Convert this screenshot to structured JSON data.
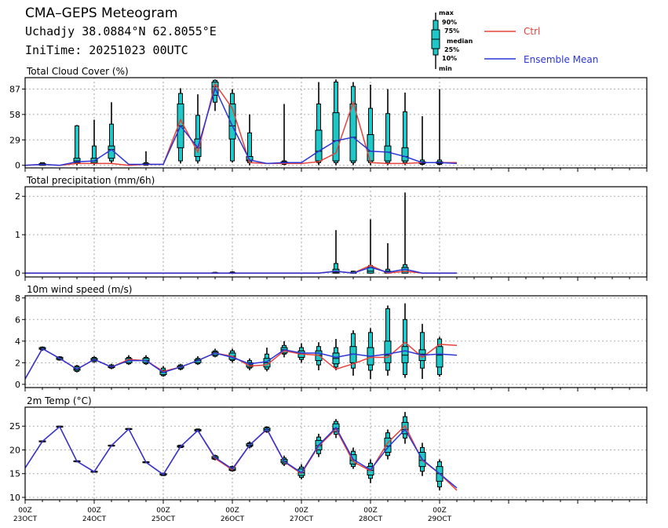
{
  "header": {
    "title": "CMA–GEPS Meteogram",
    "location": "Uchadjy 38.0884°N 62.8055°E",
    "init": "IniTime: 20251023 00UTC"
  },
  "legend": {
    "box_labels": [
      "max",
      "90%",
      "75%",
      "median",
      "25%",
      "10%",
      "min"
    ],
    "ctrl_label": "Ctrl",
    "mean_label": "Ensemble Mean",
    "ctrl_color": "#e8403a",
    "mean_color": "#2b35d6",
    "box_color": "#1ec8c8"
  },
  "x_axis": {
    "steps": 36,
    "hours_per_step": 6,
    "ticks": [
      {
        "step": 0,
        "top": "00Z",
        "bottom": "23OCT"
      },
      {
        "step": 4,
        "top": "00Z",
        "bottom": "24OCT"
      },
      {
        "step": 8,
        "top": "00Z",
        "bottom": "25OCT"
      },
      {
        "step": 12,
        "top": "00Z",
        "bottom": "26OCT"
      },
      {
        "step": 16,
        "top": "00Z",
        "bottom": "27OCT"
      },
      {
        "step": 20,
        "top": "00Z",
        "bottom": "28OCT"
      },
      {
        "step": 24,
        "top": "00Z",
        "bottom": "29OCT"
      }
    ]
  },
  "chart_data": [
    {
      "type": "box",
      "title": "Total Cloud Cover (%)",
      "ylim": [
        -3,
        100
      ],
      "yticks": [
        0,
        29,
        58,
        87
      ],
      "ctrl": [
        0,
        1,
        0,
        2,
        2,
        2,
        0,
        1,
        1,
        52,
        15,
        93,
        65,
        3,
        2,
        2,
        2,
        4,
        14,
        72,
        3,
        2,
        2,
        3,
        3,
        3
      ],
      "mean": [
        0,
        1,
        0,
        4,
        5,
        18,
        1,
        1,
        1,
        45,
        20,
        88,
        45,
        6,
        2,
        3,
        3,
        16,
        28,
        32,
        16,
        15,
        10,
        3,
        3,
        2
      ],
      "boxes": {
        "1": {
          "min": 0,
          "p10": 0,
          "p25": 0,
          "median": 1,
          "p75": 2,
          "p90": 3,
          "max": 3
        },
        "3": {
          "min": 0,
          "p10": 2,
          "p25": 3,
          "median": 5,
          "p75": 8,
          "p90": 45,
          "max": 46
        },
        "4": {
          "min": 0,
          "p10": 2,
          "p25": 3,
          "median": 5,
          "p75": 8,
          "p90": 22,
          "max": 52
        },
        "5": {
          "min": 2,
          "p10": 5,
          "p25": 8,
          "median": 18,
          "p75": 22,
          "p90": 47,
          "max": 72
        },
        "7": {
          "min": 0,
          "p10": 0,
          "p25": 1,
          "median": 1,
          "p75": 2,
          "p90": 3,
          "max": 16
        },
        "9": {
          "min": 2,
          "p10": 5,
          "p25": 20,
          "median": 45,
          "p75": 70,
          "p90": 82,
          "max": 88
        },
        "10": {
          "min": 2,
          "p10": 5,
          "p25": 10,
          "median": 20,
          "p75": 30,
          "p90": 57,
          "max": 81
        },
        "11": {
          "min": 62,
          "p10": 72,
          "p25": 80,
          "median": 90,
          "p75": 95,
          "p90": 97,
          "max": 98
        },
        "12": {
          "min": 3,
          "p10": 5,
          "p25": 30,
          "median": 45,
          "p75": 70,
          "p90": 82,
          "max": 87
        },
        "13": {
          "min": 0,
          "p10": 3,
          "p25": 5,
          "median": 6,
          "p75": 10,
          "p90": 37,
          "max": 58
        },
        "15": {
          "min": 0,
          "p10": 1,
          "p25": 2,
          "median": 3,
          "p75": 4,
          "p90": 5,
          "max": 70
        },
        "17": {
          "min": 0,
          "p10": 3,
          "p25": 5,
          "median": 16,
          "p75": 40,
          "p90": 70,
          "max": 95
        },
        "18": {
          "min": 0,
          "p10": 3,
          "p25": 5,
          "median": 28,
          "p75": 60,
          "p90": 95,
          "max": 98
        },
        "19": {
          "min": 0,
          "p10": 3,
          "p25": 5,
          "median": 32,
          "p75": 70,
          "p90": 90,
          "max": 95
        },
        "20": {
          "min": 0,
          "p10": 3,
          "p25": 5,
          "median": 16,
          "p75": 35,
          "p90": 65,
          "max": 92
        },
        "21": {
          "min": 0,
          "p10": 3,
          "p25": 5,
          "median": 15,
          "p75": 22,
          "p90": 59,
          "max": 87
        },
        "22": {
          "min": 0,
          "p10": 3,
          "p25": 5,
          "median": 10,
          "p75": 20,
          "p90": 61,
          "max": 83
        },
        "23": {
          "min": 0,
          "p10": 1,
          "p25": 2,
          "median": 3,
          "p75": 4,
          "p90": 6,
          "max": 56
        },
        "24": {
          "min": 0,
          "p10": 1,
          "p25": 2,
          "median": 3,
          "p75": 4,
          "p90": 6,
          "max": 87
        }
      }
    },
    {
      "type": "box",
      "title": "Total precipitation (mm/6h)",
      "ylim": [
        -0.1,
        2.25
      ],
      "yticks": [
        0,
        1,
        2
      ],
      "ctrl": [
        0,
        0,
        0,
        0,
        0,
        0,
        0,
        0,
        0,
        0,
        0,
        0,
        0,
        0,
        0,
        0,
        0,
        0,
        0.05,
        0,
        0.2,
        0,
        0.05,
        0,
        0,
        0
      ],
      "mean": [
        0,
        0,
        0,
        0,
        0,
        0,
        0,
        0,
        0,
        0,
        0,
        0,
        0,
        0,
        0,
        0,
        0,
        0,
        0.05,
        0,
        0.15,
        0.02,
        0.1,
        0,
        0,
        0
      ],
      "boxes": {
        "11": {
          "min": 0,
          "p10": 0,
          "p25": 0,
          "median": 0,
          "p75": 0.01,
          "p90": 0.02,
          "max": 0.03
        },
        "12": {
          "min": 0,
          "p10": 0,
          "p25": 0,
          "median": 0,
          "p75": 0.01,
          "p90": 0.03,
          "max": 0.05
        },
        "18": {
          "min": 0,
          "p10": 0,
          "p25": 0,
          "median": 0.02,
          "p75": 0.1,
          "p90": 0.25,
          "max": 1.12
        },
        "19": {
          "min": 0,
          "p10": 0,
          "p25": 0,
          "median": 0,
          "p75": 0.02,
          "p90": 0.05,
          "max": 0.06
        },
        "20": {
          "min": 0,
          "p10": 0,
          "p25": 0,
          "median": 0.05,
          "p75": 0.15,
          "p90": 0.2,
          "max": 1.4
        },
        "21": {
          "min": 0,
          "p10": 0,
          "p25": 0,
          "median": 0.01,
          "p75": 0.05,
          "p90": 0.1,
          "max": 0.78
        },
        "22": {
          "min": 0,
          "p10": 0,
          "p25": 0,
          "median": 0.05,
          "p75": 0.15,
          "p90": 0.22,
          "max": 2.1
        }
      }
    },
    {
      "type": "box",
      "title": "10m wind speed (m/s)",
      "ylim": [
        -0.3,
        8.2
      ],
      "yticks": [
        0,
        2,
        4,
        6,
        8
      ],
      "ctrl": [
        0.5,
        3.3,
        2.4,
        1.4,
        2.3,
        1.6,
        2.3,
        2.2,
        1.2,
        1.6,
        2.2,
        2.9,
        2.6,
        1.7,
        1.8,
        3.1,
        2.8,
        2.7,
        1.4,
        1.9,
        2.5,
        2.5,
        3.9,
        2.5,
        3.7,
        3.6
      ],
      "mean": [
        0.5,
        3.3,
        2.4,
        1.4,
        2.3,
        1.6,
        2.2,
        2.2,
        1.1,
        1.6,
        2.2,
        2.9,
        2.5,
        1.9,
        2.1,
        3.2,
        2.9,
        2.9,
        2.5,
        2.8,
        2.6,
        2.8,
        3.1,
        2.7,
        2.8,
        2.7
      ],
      "boxes": {
        "1": {
          "min": 3.1,
          "p10": 3.2,
          "p25": 3.25,
          "median": 3.3,
          "p75": 3.4,
          "p90": 3.45,
          "max": 3.5
        },
        "2": {
          "min": 2.2,
          "p10": 2.25,
          "p25": 2.3,
          "median": 2.4,
          "p75": 2.5,
          "p90": 2.55,
          "max": 2.6
        },
        "3": {
          "min": 1.1,
          "p10": 1.2,
          "p25": 1.3,
          "median": 1.4,
          "p75": 1.6,
          "p90": 1.7,
          "max": 1.8
        },
        "4": {
          "min": 2.0,
          "p10": 2.1,
          "p25": 2.2,
          "median": 2.3,
          "p75": 2.4,
          "p90": 2.5,
          "max": 2.6
        },
        "5": {
          "min": 1.4,
          "p10": 1.5,
          "p25": 1.55,
          "median": 1.6,
          "p75": 1.7,
          "p90": 1.8,
          "max": 1.9
        },
        "6": {
          "min": 1.8,
          "p10": 1.9,
          "p25": 2.0,
          "median": 2.2,
          "p75": 2.4,
          "p90": 2.5,
          "max": 2.7
        },
        "7": {
          "min": 1.8,
          "p10": 1.9,
          "p25": 2.0,
          "median": 2.2,
          "p75": 2.4,
          "p90": 2.5,
          "max": 2.7
        },
        "8": {
          "min": 0.7,
          "p10": 0.8,
          "p25": 0.9,
          "median": 1.1,
          "p75": 1.3,
          "p90": 1.5,
          "max": 1.7
        },
        "9": {
          "min": 1.3,
          "p10": 1.4,
          "p25": 1.5,
          "median": 1.6,
          "p75": 1.7,
          "p90": 1.8,
          "max": 1.9
        },
        "10": {
          "min": 1.8,
          "p10": 1.9,
          "p25": 2.0,
          "median": 2.2,
          "p75": 2.3,
          "p90": 2.4,
          "max": 2.6
        },
        "11": {
          "min": 2.5,
          "p10": 2.6,
          "p25": 2.7,
          "median": 2.9,
          "p75": 3.0,
          "p90": 3.1,
          "max": 3.3
        },
        "12": {
          "min": 2.0,
          "p10": 2.2,
          "p25": 2.3,
          "median": 2.6,
          "p75": 2.9,
          "p90": 3.1,
          "max": 3.3
        },
        "13": {
          "min": 1.3,
          "p10": 1.5,
          "p25": 1.6,
          "median": 1.8,
          "p75": 2.0,
          "p90": 2.2,
          "max": 2.4
        },
        "14": {
          "min": 1.2,
          "p10": 1.4,
          "p25": 1.6,
          "median": 2.0,
          "p75": 2.4,
          "p90": 2.8,
          "max": 3.4
        },
        "15": {
          "min": 2.5,
          "p10": 2.8,
          "p25": 2.9,
          "median": 3.2,
          "p75": 3.4,
          "p90": 3.6,
          "max": 4.0
        },
        "16": {
          "min": 2.0,
          "p10": 2.3,
          "p25": 2.5,
          "median": 2.8,
          "p75": 3.1,
          "p90": 3.4,
          "max": 3.8
        },
        "17": {
          "min": 1.3,
          "p10": 1.8,
          "p25": 2.2,
          "median": 2.7,
          "p75": 3.1,
          "p90": 3.5,
          "max": 3.9
        },
        "18": {
          "min": 1.3,
          "p10": 1.6,
          "p25": 1.9,
          "median": 2.4,
          "p75": 2.9,
          "p90": 3.4,
          "max": 4.2
        },
        "19": {
          "min": 0.8,
          "p10": 1.5,
          "p25": 2.0,
          "median": 2.8,
          "p75": 3.5,
          "p90": 4.7,
          "max": 5.0
        },
        "20": {
          "min": 0.5,
          "p10": 1.3,
          "p25": 1.8,
          "median": 2.6,
          "p75": 3.4,
          "p90": 4.8,
          "max": 5.2
        },
        "21": {
          "min": 0.8,
          "p10": 1.3,
          "p25": 2.0,
          "median": 2.7,
          "p75": 4.0,
          "p90": 7.0,
          "max": 7.3
        },
        "22": {
          "min": 0.6,
          "p10": 0.9,
          "p25": 2.0,
          "median": 2.7,
          "p75": 3.5,
          "p90": 6.0,
          "max": 7.5
        },
        "23": {
          "min": 0.5,
          "p10": 1.5,
          "p25": 2.2,
          "median": 2.8,
          "p75": 3.2,
          "p90": 4.8,
          "max": 5.6
        },
        "24": {
          "min": 0.7,
          "p10": 0.9,
          "p25": 1.6,
          "median": 2.7,
          "p75": 3.5,
          "p90": 4.2,
          "max": 4.4
        }
      }
    },
    {
      "type": "box",
      "title": "2m Temp (°C)",
      "ylim": [
        9.5,
        29
      ],
      "yticks": [
        10,
        15,
        20,
        25
      ],
      "ctrl": [
        16.2,
        21.8,
        24.9,
        17.6,
        15.4,
        20.9,
        24.4,
        17.4,
        14.8,
        20.7,
        24.1,
        18.2,
        15.8,
        21.0,
        24.3,
        17.5,
        15.0,
        20.8,
        24.4,
        17.5,
        15.6,
        21.5,
        25.1,
        17.8,
        15.0,
        11.5
      ],
      "mean": [
        16.2,
        21.8,
        24.9,
        17.6,
        15.4,
        20.9,
        24.4,
        17.4,
        14.8,
        20.7,
        24.1,
        18.4,
        16.0,
        21.0,
        24.4,
        17.6,
        15.2,
        21.0,
        24.7,
        18.0,
        15.8,
        20.5,
        24.3,
        18.0,
        15.0,
        12.0
      ],
      "boxes": {
        "1": {
          "min": 21.6,
          "p10": 21.7,
          "p25": 21.7,
          "median": 21.8,
          "p75": 21.9,
          "p90": 21.9,
          "max": 22.0
        },
        "2": {
          "min": 24.7,
          "p10": 24.8,
          "p25": 24.8,
          "median": 24.9,
          "p75": 25.0,
          "p90": 25.0,
          "max": 25.1
        },
        "3": {
          "min": 17.4,
          "p10": 17.5,
          "p25": 17.5,
          "median": 17.6,
          "p75": 17.7,
          "p90": 17.7,
          "max": 17.8
        },
        "4": {
          "min": 15.2,
          "p10": 15.3,
          "p25": 15.3,
          "median": 15.4,
          "p75": 15.5,
          "p90": 15.5,
          "max": 15.6
        },
        "5": {
          "min": 20.7,
          "p10": 20.8,
          "p25": 20.8,
          "median": 20.9,
          "p75": 21.0,
          "p90": 21.0,
          "max": 21.1
        },
        "6": {
          "min": 24.2,
          "p10": 24.3,
          "p25": 24.3,
          "median": 24.4,
          "p75": 24.5,
          "p90": 24.5,
          "max": 24.6
        },
        "7": {
          "min": 17.2,
          "p10": 17.3,
          "p25": 17.3,
          "median": 17.4,
          "p75": 17.5,
          "p90": 17.5,
          "max": 17.6
        },
        "8": {
          "min": 14.5,
          "p10": 14.6,
          "p25": 14.7,
          "median": 14.8,
          "p75": 15.0,
          "p90": 15.1,
          "max": 15.2
        },
        "9": {
          "min": 20.4,
          "p10": 20.5,
          "p25": 20.6,
          "median": 20.7,
          "p75": 20.9,
          "p90": 21.0,
          "max": 21.1
        },
        "10": {
          "min": 23.8,
          "p10": 23.9,
          "p25": 24.0,
          "median": 24.1,
          "p75": 24.3,
          "p90": 24.4,
          "max": 24.5
        },
        "11": {
          "min": 17.8,
          "p10": 18.0,
          "p25": 18.1,
          "median": 18.3,
          "p75": 18.6,
          "p90": 18.8,
          "max": 19.0
        },
        "12": {
          "min": 15.4,
          "p10": 15.6,
          "p25": 15.7,
          "median": 15.9,
          "p75": 16.3,
          "p90": 16.5,
          "max": 16.7
        },
        "13": {
          "min": 20.3,
          "p10": 20.6,
          "p25": 20.8,
          "median": 21.0,
          "p75": 21.3,
          "p90": 21.5,
          "max": 21.8
        },
        "14": {
          "min": 23.6,
          "p10": 23.8,
          "p25": 24.0,
          "median": 24.3,
          "p75": 24.6,
          "p90": 24.8,
          "max": 25.0
        },
        "15": {
          "min": 16.6,
          "p10": 17.0,
          "p25": 17.3,
          "median": 17.6,
          "p75": 18.0,
          "p90": 18.3,
          "max": 18.8
        },
        "16": {
          "min": 13.8,
          "p10": 14.2,
          "p25": 14.6,
          "median": 15.2,
          "p75": 16.0,
          "p90": 16.4,
          "max": 17.0
        },
        "17": {
          "min": 18.5,
          "p10": 19.2,
          "p25": 20.0,
          "median": 20.9,
          "p75": 22.0,
          "p90": 22.7,
          "max": 23.4
        },
        "18": {
          "min": 22.5,
          "p10": 23.3,
          "p25": 23.8,
          "median": 24.5,
          "p75": 25.5,
          "p90": 26.0,
          "max": 26.5
        },
        "19": {
          "min": 16.0,
          "p10": 16.5,
          "p25": 17.0,
          "median": 17.8,
          "p75": 19.0,
          "p90": 19.7,
          "max": 20.5
        },
        "20": {
          "min": 13.0,
          "p10": 14.0,
          "p25": 14.7,
          "median": 15.7,
          "p75": 16.5,
          "p90": 17.2,
          "max": 18.0
        },
        "21": {
          "min": 18.0,
          "p10": 18.8,
          "p25": 19.5,
          "median": 20.8,
          "p75": 22.5,
          "p90": 23.6,
          "max": 24.3
        },
        "22": {
          "min": 21.3,
          "p10": 22.5,
          "p25": 23.4,
          "median": 24.3,
          "p75": 25.8,
          "p90": 27.0,
          "max": 28.0
        },
        "23": {
          "min": 14.5,
          "p10": 15.5,
          "p25": 16.5,
          "median": 17.8,
          "p75": 19.5,
          "p90": 20.5,
          "max": 21.5
        },
        "24": {
          "min": 11.5,
          "p10": 12.2,
          "p25": 13.4,
          "median": 15.0,
          "p75": 16.5,
          "p90": 17.5,
          "max": 18.0
        }
      }
    }
  ]
}
